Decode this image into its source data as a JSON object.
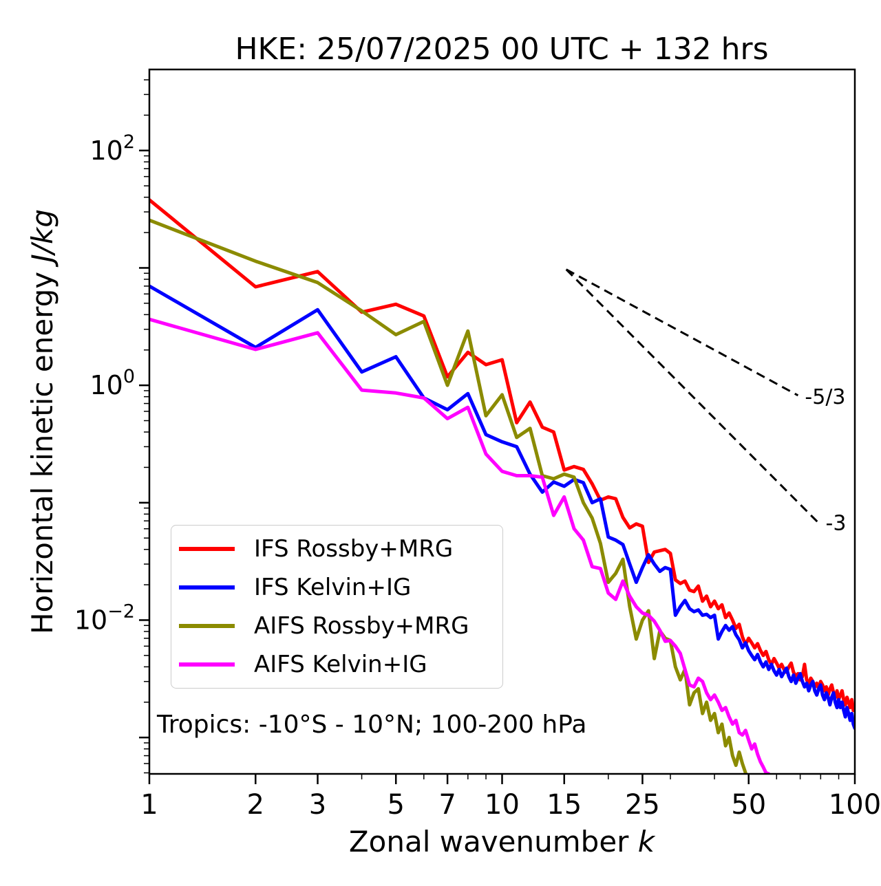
{
  "chart_data": {
    "type": "line",
    "title": "HKE: 25/07/2025 00 UTC + 132 hrs",
    "xlabel": {
      "text": "Zonal wavenumber ",
      "math": "k"
    },
    "ylabel": {
      "text": "Horizontal kinetic energy ",
      "math": "J/kg"
    },
    "x_scale": "log",
    "y_scale": "log",
    "xlim": [
      1,
      100
    ],
    "ylim": [
      0.00049,
      490
    ],
    "grid": false,
    "legend_position": "lower-left",
    "annotation": "Tropics: -10°S - 10°N; 100-200 hPa",
    "x_ticks": [
      {
        "v": 1,
        "label": "1"
      },
      {
        "v": 2,
        "label": "2"
      },
      {
        "v": 3,
        "label": "3"
      },
      {
        "v": 5,
        "label": "5"
      },
      {
        "v": 7,
        "label": "7"
      },
      {
        "v": 10,
        "label": "10"
      },
      {
        "v": 15,
        "label": "15"
      },
      {
        "v": 25,
        "label": "25"
      },
      {
        "v": 50,
        "label": "50"
      },
      {
        "v": 100,
        "label": "100"
      }
    ],
    "x_minor_ticks": [
      4,
      6,
      8,
      9,
      20,
      30,
      40,
      60,
      70,
      80,
      90
    ],
    "y_ticks": [
      {
        "v": 100,
        "base": "10",
        "exp": "2"
      },
      {
        "v": 1,
        "base": "10",
        "exp": "0"
      },
      {
        "v": 0.01,
        "base": "10",
        "exp": "−2"
      }
    ],
    "guides": [
      {
        "label": "-5/3",
        "from": [
          15.2,
          9.7
        ],
        "to": [
          69,
          0.82
        ],
        "label_offset": [
          10,
          12
        ]
      },
      {
        "label": "-3",
        "from": [
          15.2,
          9.7
        ],
        "to": [
          79,
          0.067
        ],
        "label_offset": [
          10,
          10
        ]
      }
    ],
    "series": [
      {
        "name": "IFS Rossby+MRG",
        "color": "#ff0000",
        "x_start": 1,
        "x_step": 1,
        "y": [
          38,
          6.9,
          9.3,
          4.2,
          4.9,
          3.9,
          1.18,
          1.91,
          1.5,
          1.65,
          0.48,
          0.72,
          0.44,
          0.4,
          0.19,
          0.203,
          0.192,
          0.145,
          0.105,
          0.112,
          0.108,
          0.075,
          0.061,
          0.066,
          0.063,
          0.031,
          0.038,
          0.039,
          0.04,
          0.037,
          0.022,
          0.0205,
          0.0215,
          0.018,
          0.0175,
          0.0195,
          0.0145,
          0.016,
          0.013,
          0.0145,
          0.0125,
          0.0135,
          0.0105,
          0.0115,
          0.01,
          0.0085,
          0.0092,
          0.0072,
          0.0062,
          0.007,
          0.0064,
          0.0058,
          0.0063,
          0.0055,
          0.005,
          0.0054,
          0.0046,
          0.0042,
          0.0047,
          0.0043,
          0.0039,
          0.0042,
          0.0038,
          0.0036,
          0.004,
          0.0043,
          0.0036,
          0.0033,
          0.0035,
          0.0031,
          0.0033,
          0.0042,
          0.0031,
          0.0029,
          0.0032,
          0.003,
          0.0027,
          0.0029,
          0.0026,
          0.003,
          0.0028,
          0.0025,
          0.0027,
          0.0023,
          0.0026,
          0.0028,
          0.0024,
          0.0022,
          0.0025,
          0.0021,
          0.0023,
          0.0025,
          0.0021,
          0.0019,
          0.0022,
          0.002,
          0.0018,
          0.0021,
          0.0017,
          0.0019
        ]
      },
      {
        "name": "IFS Kelvin+IG",
        "color": "#0000ff",
        "x_start": 1,
        "x_step": 1,
        "y": [
          7.0,
          2.1,
          4.4,
          1.3,
          1.75,
          0.78,
          0.62,
          0.85,
          0.38,
          0.33,
          0.3,
          0.175,
          0.123,
          0.15,
          0.138,
          0.158,
          0.148,
          0.1,
          0.108,
          0.051,
          0.048,
          0.044,
          0.03,
          0.021,
          0.028,
          0.036,
          0.03,
          0.026,
          0.028,
          0.027,
          0.011,
          0.013,
          0.0147,
          0.0125,
          0.0118,
          0.0122,
          0.011,
          0.0112,
          0.0105,
          0.011,
          0.0069,
          0.008,
          0.009,
          0.0082,
          0.0088,
          0.0075,
          0.0068,
          0.0058,
          0.0064,
          0.0055,
          0.005,
          0.0046,
          0.0051,
          0.0044,
          0.004,
          0.0044,
          0.0038,
          0.0042,
          0.0037,
          0.0034,
          0.0038,
          0.0033,
          0.0036,
          0.0039,
          0.0033,
          0.003,
          0.0034,
          0.0029,
          0.0032,
          0.0035,
          0.003,
          0.0027,
          0.0029,
          0.0025,
          0.0028,
          0.003,
          0.0025,
          0.0023,
          0.0026,
          0.0028,
          0.0023,
          0.0021,
          0.0024,
          0.0022,
          0.0019,
          0.0022,
          0.0024,
          0.002,
          0.0018,
          0.0021,
          0.0018,
          0.002,
          0.0017,
          0.0015,
          0.0018,
          0.0016,
          0.0014,
          0.0016,
          0.0013,
          0.0012
        ]
      },
      {
        "name": "AIFS Rossby+MRG",
        "color": "#8b8b00",
        "x_start": 1,
        "x_step": 1,
        "y": [
          25.5,
          11.4,
          7.5,
          4.3,
          2.7,
          3.5,
          1.0,
          2.9,
          0.55,
          0.83,
          0.36,
          0.43,
          0.17,
          0.16,
          0.175,
          0.165,
          0.1,
          0.074,
          0.045,
          0.021,
          0.025,
          0.033,
          0.013,
          0.0069,
          0.01,
          0.012,
          0.0047,
          0.0081,
          0.007,
          0.0067,
          0.004,
          0.0031,
          0.0038,
          0.0019,
          0.0024,
          0.0026,
          0.0016,
          0.002,
          0.0014,
          0.0016,
          0.0011,
          0.0013,
          0.00085,
          0.001,
          0.0007,
          0.00058,
          0.00075,
          0.0006,
          0.0005
        ]
      },
      {
        "name": "AIFS Kelvin+IG",
        "color": "#ff00ff",
        "x_start": 1,
        "x_step": 1,
        "y": [
          3.65,
          2.02,
          2.8,
          0.91,
          0.86,
          0.78,
          0.52,
          0.65,
          0.26,
          0.185,
          0.17,
          0.17,
          0.165,
          0.078,
          0.112,
          0.06,
          0.048,
          0.0285,
          0.0275,
          0.017,
          0.015,
          0.0215,
          0.016,
          0.013,
          0.0115,
          0.011,
          0.0098,
          0.0082,
          0.0066,
          0.0067,
          0.006,
          0.0052,
          0.0038,
          0.0028,
          0.0027,
          0.0032,
          0.003,
          0.0024,
          0.0021,
          0.0023,
          0.002,
          0.0017,
          0.0018,
          0.0015,
          0.0013,
          0.0014,
          0.0011,
          0.00105,
          0.00115,
          0.00095,
          0.0008,
          0.00088,
          0.00072,
          0.00062,
          0.00056,
          0.0005,
          0.00049
        ]
      }
    ]
  }
}
